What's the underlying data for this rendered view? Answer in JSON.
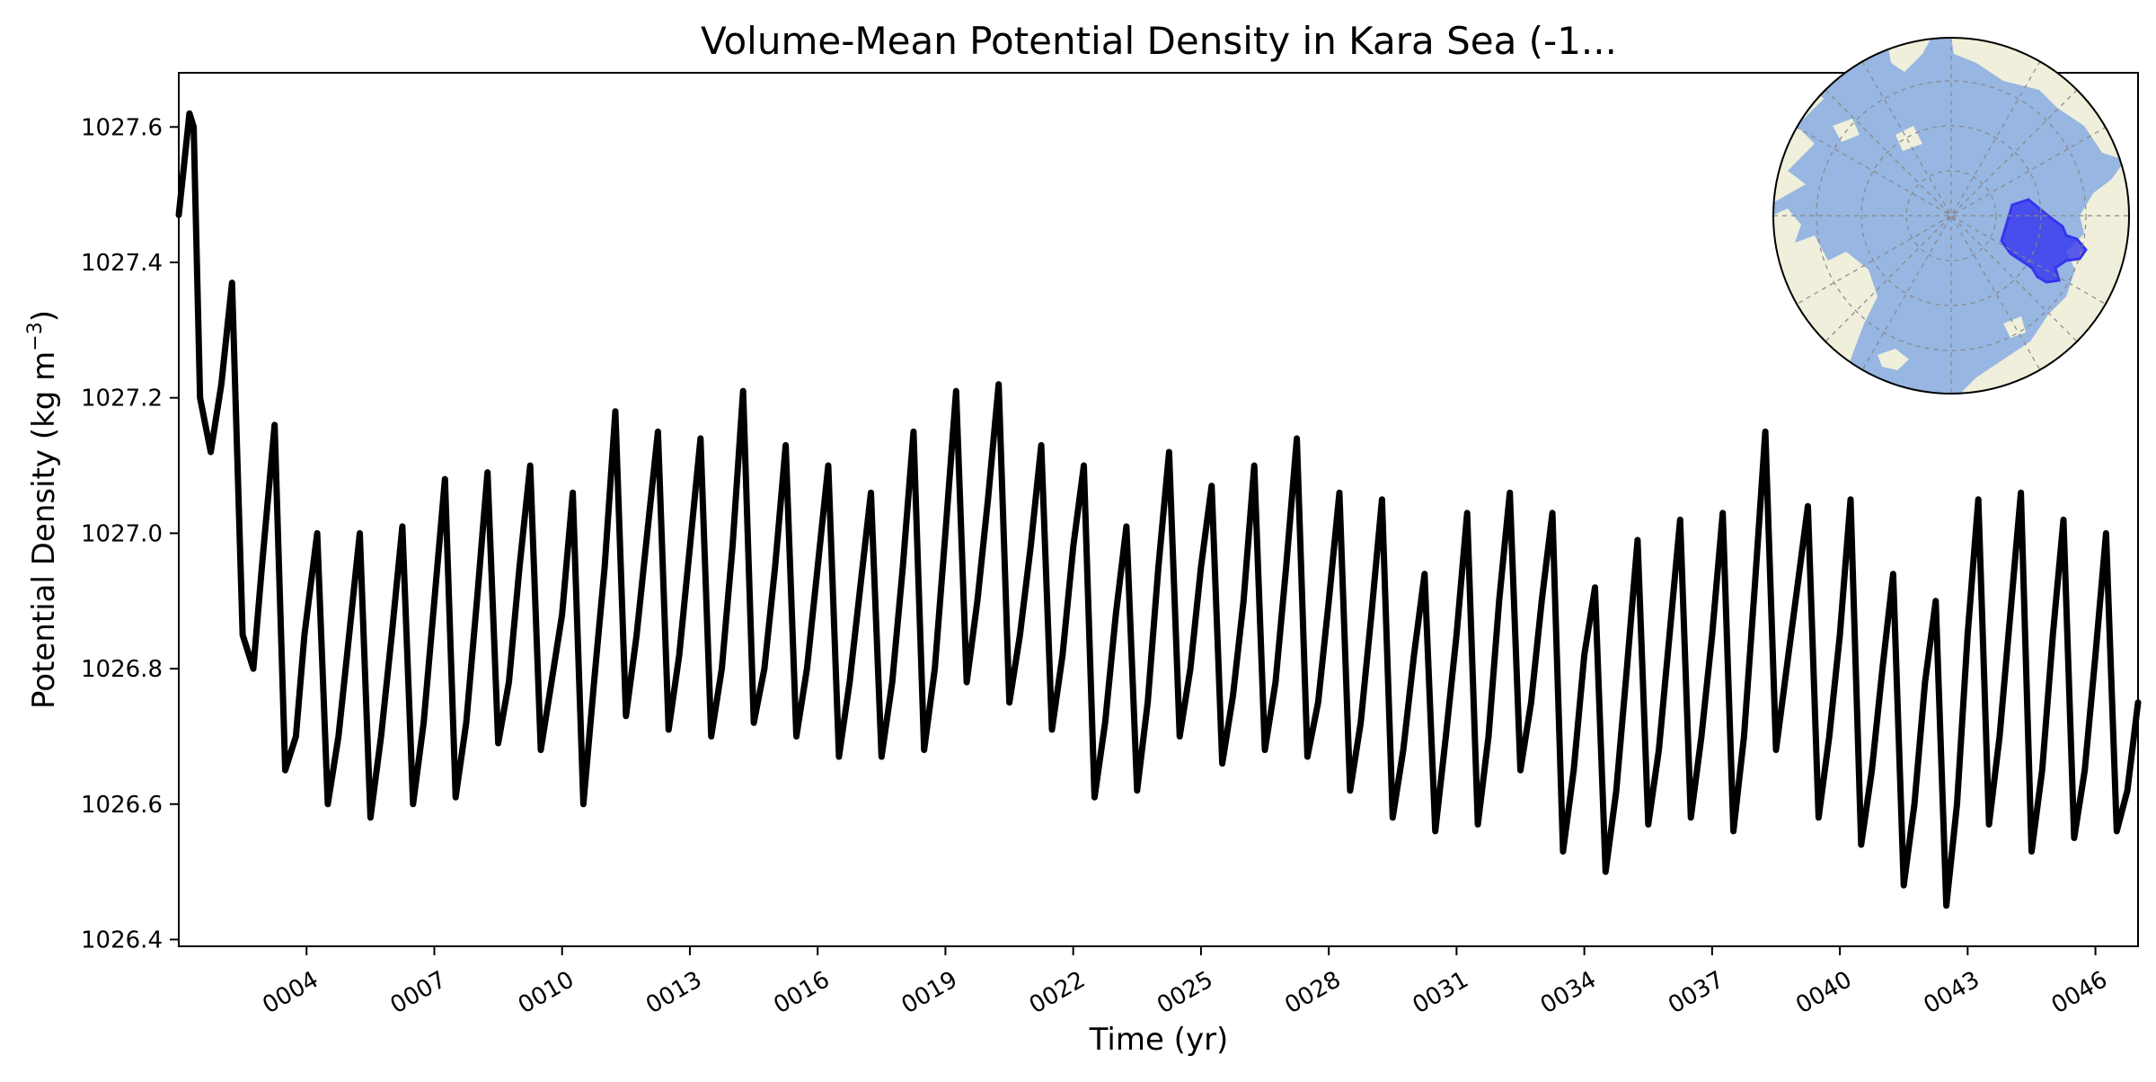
{
  "chart_data": {
    "type": "line",
    "title": "Volume-Mean Potential Density in Kara Sea (-1...",
    "xlabel": "Time (yr)",
    "ylabel": "Potential Density (kg m",
    "ylabel_exponent": "−3",
    "ylabel_suffix": ")",
    "x_unit": "year",
    "xlim": [
      1.0,
      47.0
    ],
    "ylim": [
      1026.39,
      1027.68
    ],
    "x_tick_values": [
      4,
      7,
      10,
      13,
      16,
      19,
      22,
      25,
      28,
      31,
      34,
      37,
      40,
      43,
      46
    ],
    "x_tick_labels": [
      "0004",
      "0007",
      "0010",
      "0013",
      "0016",
      "0019",
      "0022",
      "0025",
      "0028",
      "0031",
      "0034",
      "0037",
      "0040",
      "0043",
      "0046"
    ],
    "y_ticks": [
      1026.4,
      1026.6,
      1026.8,
      1027.0,
      1027.2,
      1027.4,
      1027.6
    ],
    "y_tick_labels": [
      "1026.4",
      "1026.6",
      "1026.8",
      "1027.0",
      "1027.2",
      "1027.4",
      "1027.6"
    ],
    "grid": false,
    "legend": "none",
    "series": [
      {
        "color": "#000000",
        "x": [
          1.0,
          1.25,
          1.35,
          1.5,
          1.75,
          2.0,
          2.25,
          2.5,
          2.75,
          2.95,
          3.25,
          3.5,
          3.75,
          3.95,
          4.25,
          4.5,
          4.75,
          5.0,
          5.25,
          5.5,
          5.75,
          6.0,
          6.25,
          6.5,
          6.75,
          7.0,
          7.25,
          7.5,
          7.75,
          8.0,
          8.25,
          8.5,
          8.75,
          9.0,
          9.25,
          9.5,
          9.75,
          10.0,
          10.25,
          10.5,
          10.75,
          11.0,
          11.25,
          11.5,
          11.75,
          12.0,
          12.25,
          12.5,
          12.75,
          13.0,
          13.25,
          13.5,
          13.75,
          14.0,
          14.25,
          14.5,
          14.75,
          15.0,
          15.25,
          15.5,
          15.75,
          16.0,
          16.25,
          16.5,
          16.75,
          17.0,
          17.25,
          17.5,
          17.75,
          18.0,
          18.25,
          18.5,
          18.75,
          19.0,
          19.25,
          19.5,
          19.75,
          20.0,
          20.25,
          20.5,
          20.75,
          21.0,
          21.25,
          21.5,
          21.75,
          22.0,
          22.25,
          22.5,
          22.75,
          23.0,
          23.25,
          23.5,
          23.75,
          24.0,
          24.25,
          24.5,
          24.75,
          25.0,
          25.25,
          25.5,
          25.75,
          26.0,
          26.25,
          26.5,
          26.75,
          27.0,
          27.25,
          27.5,
          27.75,
          28.0,
          28.25,
          28.5,
          28.75,
          29.0,
          29.25,
          29.5,
          29.75,
          30.0,
          30.25,
          30.5,
          30.75,
          31.0,
          31.25,
          31.5,
          31.75,
          32.0,
          32.25,
          32.5,
          32.75,
          33.0,
          33.25,
          33.5,
          33.75,
          34.0,
          34.25,
          34.5,
          34.75,
          35.0,
          35.25,
          35.5,
          35.75,
          36.0,
          36.25,
          36.5,
          36.75,
          37.0,
          37.25,
          37.5,
          37.75,
          38.0,
          38.25,
          38.5,
          38.75,
          39.0,
          39.25,
          39.5,
          39.75,
          40.0,
          40.25,
          40.5,
          40.75,
          41.0,
          41.25,
          41.5,
          41.75,
          42.0,
          42.25,
          42.5,
          42.75,
          43.0,
          43.25,
          43.5,
          43.75,
          44.0,
          44.25,
          44.5,
          44.75,
          45.0,
          45.25,
          45.5,
          45.75,
          46.0,
          46.25,
          46.5,
          46.75,
          47.0
        ],
        "y": [
          1027.47,
          1027.62,
          1027.6,
          1027.2,
          1027.12,
          1027.22,
          1027.37,
          1026.85,
          1026.8,
          1026.95,
          1027.16,
          1026.65,
          1026.7,
          1026.85,
          1027.0,
          1026.6,
          1026.7,
          1026.85,
          1027.0,
          1026.58,
          1026.7,
          1026.85,
          1027.01,
          1026.6,
          1026.72,
          1026.9,
          1027.08,
          1026.61,
          1026.72,
          1026.9,
          1027.09,
          1026.69,
          1026.78,
          1026.95,
          1027.1,
          1026.68,
          1026.78,
          1026.88,
          1027.06,
          1026.6,
          1026.78,
          1026.95,
          1027.18,
          1026.73,
          1026.85,
          1027.0,
          1027.15,
          1026.71,
          1026.82,
          1026.98,
          1027.14,
          1026.7,
          1026.8,
          1026.98,
          1027.21,
          1026.72,
          1026.8,
          1026.95,
          1027.13,
          1026.7,
          1026.8,
          1026.95,
          1027.1,
          1026.67,
          1026.78,
          1026.92,
          1027.06,
          1026.67,
          1026.78,
          1026.95,
          1027.15,
          1026.68,
          1026.8,
          1027.0,
          1027.21,
          1026.78,
          1026.9,
          1027.05,
          1027.22,
          1026.75,
          1026.85,
          1026.98,
          1027.13,
          1026.71,
          1026.82,
          1026.98,
          1027.1,
          1026.61,
          1026.72,
          1026.88,
          1027.01,
          1026.62,
          1026.75,
          1026.95,
          1027.12,
          1026.7,
          1026.8,
          1026.95,
          1027.07,
          1026.66,
          1026.76,
          1026.9,
          1027.1,
          1026.68,
          1026.78,
          1026.95,
          1027.14,
          1026.67,
          1026.75,
          1026.9,
          1027.06,
          1026.62,
          1026.72,
          1026.88,
          1027.05,
          1026.58,
          1026.68,
          1026.82,
          1026.94,
          1026.56,
          1026.7,
          1026.85,
          1027.03,
          1026.57,
          1026.7,
          1026.9,
          1027.06,
          1026.65,
          1026.75,
          1026.9,
          1027.03,
          1026.53,
          1026.65,
          1026.82,
          1026.92,
          1026.5,
          1026.62,
          1026.8,
          1026.99,
          1026.57,
          1026.68,
          1026.85,
          1027.02,
          1026.58,
          1026.7,
          1026.85,
          1027.03,
          1026.56,
          1026.7,
          1026.92,
          1027.15,
          1026.68,
          1026.8,
          1026.92,
          1027.04,
          1026.58,
          1026.7,
          1026.85,
          1027.05,
          1026.54,
          1026.65,
          1026.8,
          1026.94,
          1026.48,
          1026.6,
          1026.78,
          1026.9,
          1026.45,
          1026.6,
          1026.85,
          1027.05,
          1026.57,
          1026.7,
          1026.88,
          1027.06,
          1026.53,
          1026.65,
          1026.85,
          1027.02,
          1026.55,
          1026.65,
          1026.82,
          1027.0,
          1026.56,
          1026.62,
          1026.75
        ]
      }
    ],
    "inset_map": {
      "projection": "north-polar-stereographic",
      "ocean_color": "#97b6e1",
      "land_color": "#efefdb",
      "region_color": "#3535ee",
      "region": "Kara Sea"
    }
  }
}
